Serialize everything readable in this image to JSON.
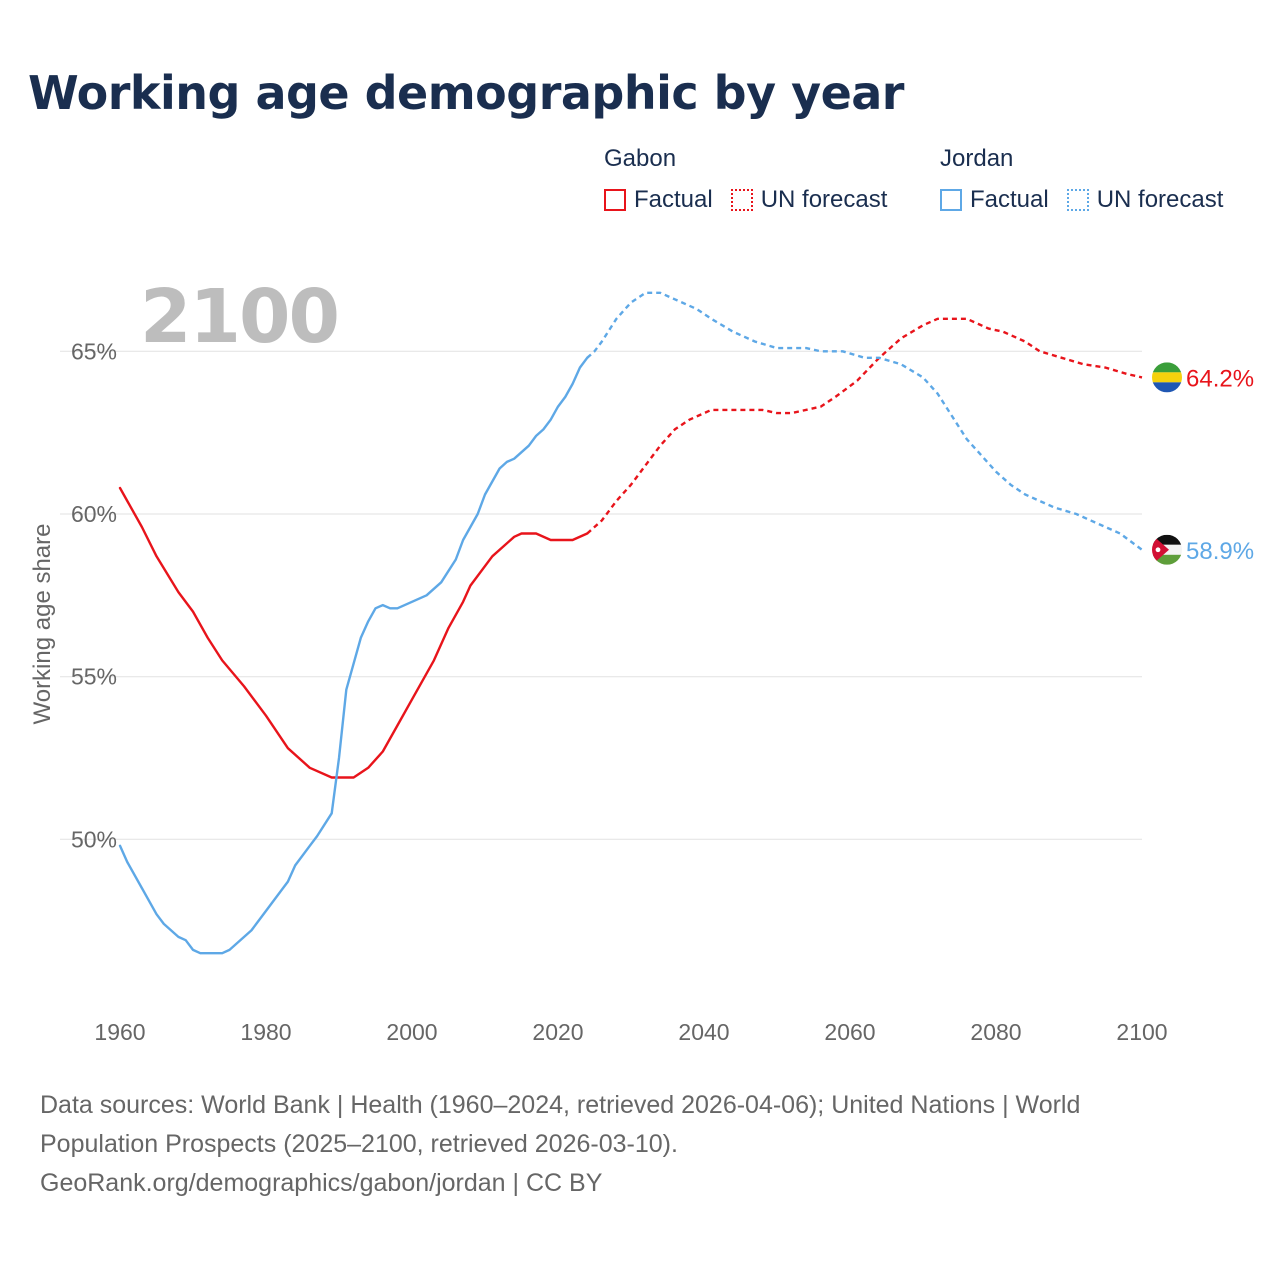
{
  "title": "Working age demographic by year",
  "legend": {
    "groups": [
      {
        "name": "Gabon",
        "factual_label": "Factual",
        "forecast_label": "UN forecast",
        "color": "#e8141b"
      },
      {
        "name": "Jordan",
        "factual_label": "Factual",
        "forecast_label": "UN forecast",
        "color": "#5ea8e6"
      }
    ]
  },
  "footer": {
    "line1": "Data sources: World Bank | Health (1960–2024, retrieved 2026-04-06); United Nations | World",
    "line2": "Population Prospects (2025–2100, retrieved 2026-03-10).",
    "line3": "GeoRank.org/demographics/gabon/jordan | CC BY"
  },
  "chart_data": {
    "type": "line",
    "year_label": "2100",
    "ylabel": "Working age share",
    "xlim": [
      1960,
      2100
    ],
    "ylim": [
      45,
      67.5
    ],
    "x_ticks": [
      1960,
      1980,
      2000,
      2020,
      2040,
      2060,
      2080,
      2100
    ],
    "x_tick_labels": [
      "1960",
      "1980",
      "2000",
      "2020",
      "2040",
      "2060",
      "2080",
      "2100"
    ],
    "y_ticks": [
      50,
      55,
      60,
      65
    ],
    "y_tick_labels": [
      "50%",
      "55%",
      "60%",
      "65%"
    ],
    "forecast_start": 2024,
    "grid": true,
    "series": [
      {
        "name": "Gabon",
        "color": "#e8141b",
        "end_label": "64.2%",
        "points": [
          [
            1960,
            60.8
          ],
          [
            1963,
            59.6
          ],
          [
            1965,
            58.7
          ],
          [
            1968,
            57.6
          ],
          [
            1970,
            57.0
          ],
          [
            1972,
            56.2
          ],
          [
            1974,
            55.5
          ],
          [
            1977,
            54.7
          ],
          [
            1980,
            53.8
          ],
          [
            1983,
            52.8
          ],
          [
            1986,
            52.2
          ],
          [
            1989,
            51.9
          ],
          [
            1992,
            51.9
          ],
          [
            1994,
            52.2
          ],
          [
            1996,
            52.7
          ],
          [
            1998,
            53.5
          ],
          [
            2000,
            54.3
          ],
          [
            2003,
            55.5
          ],
          [
            2005,
            56.5
          ],
          [
            2007,
            57.3
          ],
          [
            2008,
            57.8
          ],
          [
            2011,
            58.7
          ],
          [
            2014,
            59.3
          ],
          [
            2015,
            59.4
          ],
          [
            2017,
            59.4
          ],
          [
            2019,
            59.2
          ],
          [
            2022,
            59.2
          ],
          [
            2024,
            59.4
          ],
          [
            2026,
            59.8
          ],
          [
            2028,
            60.4
          ],
          [
            2030,
            60.9
          ],
          [
            2032,
            61.5
          ],
          [
            2034,
            62.1
          ],
          [
            2036,
            62.6
          ],
          [
            2038,
            62.9
          ],
          [
            2041,
            63.2
          ],
          [
            2044,
            63.2
          ],
          [
            2048,
            63.2
          ],
          [
            2050,
            63.1
          ],
          [
            2052,
            63.1
          ],
          [
            2056,
            63.3
          ],
          [
            2058,
            63.6
          ],
          [
            2061,
            64.1
          ],
          [
            2064,
            64.8
          ],
          [
            2067,
            65.4
          ],
          [
            2070,
            65.8
          ],
          [
            2072,
            66.0
          ],
          [
            2076,
            66.0
          ],
          [
            2079,
            65.7
          ],
          [
            2081,
            65.6
          ],
          [
            2084,
            65.3
          ],
          [
            2086,
            65.0
          ],
          [
            2089,
            64.8
          ],
          [
            2092,
            64.6
          ],
          [
            2095,
            64.5
          ],
          [
            2098,
            64.3
          ],
          [
            2100,
            64.2
          ]
        ]
      },
      {
        "name": "Jordan",
        "color": "#5ea8e6",
        "end_label": "58.9%",
        "points": [
          [
            1960,
            49.8
          ],
          [
            1961,
            49.3
          ],
          [
            1963,
            48.5
          ],
          [
            1965,
            47.7
          ],
          [
            1966,
            47.4
          ],
          [
            1968,
            47.0
          ],
          [
            1969,
            46.9
          ],
          [
            1970,
            46.6
          ],
          [
            1971,
            46.5
          ],
          [
            1974,
            46.5
          ],
          [
            1975,
            46.6
          ],
          [
            1978,
            47.2
          ],
          [
            1980,
            47.8
          ],
          [
            1983,
            48.7
          ],
          [
            1984,
            49.2
          ],
          [
            1986,
            49.8
          ],
          [
            1987,
            50.1
          ],
          [
            1989,
            50.8
          ],
          [
            1990,
            52.5
          ],
          [
            1991,
            54.6
          ],
          [
            1993,
            56.2
          ],
          [
            1994,
            56.7
          ],
          [
            1995,
            57.1
          ],
          [
            1996,
            57.2
          ],
          [
            1997,
            57.1
          ],
          [
            1998,
            57.1
          ],
          [
            2000,
            57.3
          ],
          [
            2002,
            57.5
          ],
          [
            2004,
            57.9
          ],
          [
            2006,
            58.6
          ],
          [
            2007,
            59.2
          ],
          [
            2009,
            60.0
          ],
          [
            2010,
            60.6
          ],
          [
            2012,
            61.4
          ],
          [
            2013,
            61.6
          ],
          [
            2014,
            61.7
          ],
          [
            2016,
            62.1
          ],
          [
            2017,
            62.4
          ],
          [
            2018,
            62.6
          ],
          [
            2019,
            62.9
          ],
          [
            2020,
            63.3
          ],
          [
            2021,
            63.6
          ],
          [
            2022,
            64.0
          ],
          [
            2023,
            64.5
          ],
          [
            2024,
            64.8
          ],
          [
            2025,
            65.0
          ],
          [
            2026,
            65.3
          ],
          [
            2028,
            66.0
          ],
          [
            2030,
            66.5
          ],
          [
            2032,
            66.8
          ],
          [
            2034,
            66.8
          ],
          [
            2036,
            66.6
          ],
          [
            2039,
            66.3
          ],
          [
            2041,
            66.0
          ],
          [
            2044,
            65.6
          ],
          [
            2047,
            65.3
          ],
          [
            2050,
            65.1
          ],
          [
            2054,
            65.1
          ],
          [
            2056,
            65.0
          ],
          [
            2059,
            65.0
          ],
          [
            2062,
            64.8
          ],
          [
            2064,
            64.8
          ],
          [
            2067,
            64.6
          ],
          [
            2070,
            64.2
          ],
          [
            2072,
            63.7
          ],
          [
            2074,
            63.0
          ],
          [
            2076,
            62.3
          ],
          [
            2078,
            61.8
          ],
          [
            2080,
            61.3
          ],
          [
            2082,
            60.9
          ],
          [
            2084,
            60.6
          ],
          [
            2086,
            60.4
          ],
          [
            2088,
            60.2
          ],
          [
            2091,
            60.0
          ],
          [
            2094,
            59.7
          ],
          [
            2097,
            59.4
          ],
          [
            2100,
            58.9
          ]
        ]
      }
    ]
  }
}
